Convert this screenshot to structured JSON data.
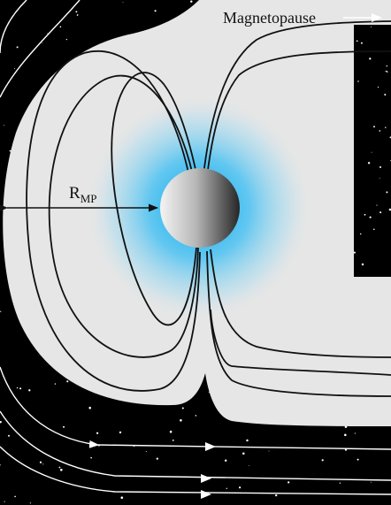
{
  "labels": {
    "magnetopause": "Magnetopause",
    "radius_main": "R",
    "radius_sub": "MP"
  },
  "colors": {
    "background": "#000000",
    "magnetosphere": "#e6e6e6",
    "field_lines": "#111111",
    "solar_wind_lines": "#ffffff",
    "plasma_glow": "#00a9f0"
  }
}
